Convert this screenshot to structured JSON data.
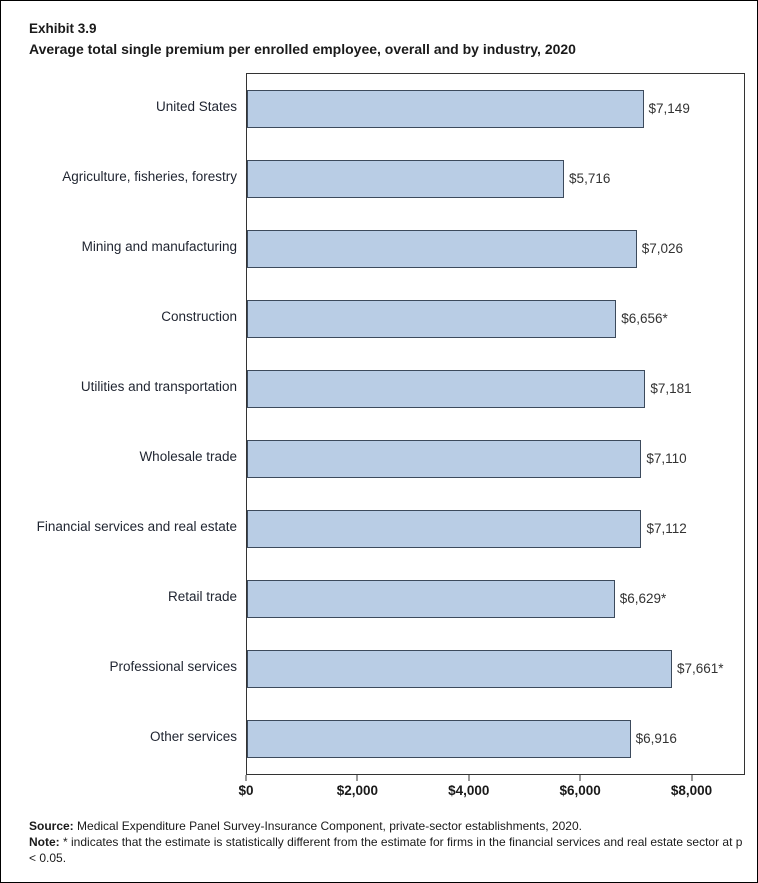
{
  "header": {
    "exhibit": "Exhibit 3.9",
    "title": "Average total single premium per enrolled employee, overall and by industry, 2020"
  },
  "chart_data": {
    "type": "bar",
    "orientation": "horizontal",
    "title": "Average total single premium per enrolled employee, overall and by industry, 2020",
    "categories": [
      "United States",
      "Agriculture, fisheries, forestry",
      "Mining and manufacturing",
      "Construction",
      "Utilities and transportation",
      "Wholesale trade",
      "Financial services and real estate",
      "Retail trade",
      "Professional services",
      "Other services"
    ],
    "values": [
      7149,
      5716,
      7026,
      6656,
      7181,
      7110,
      7112,
      6629,
      7661,
      6916
    ],
    "value_labels": [
      "$7,149",
      "$5,716",
      "$7,026",
      "$6,656*",
      "$7,181",
      "$7,110",
      "$7,112",
      "$6,629*",
      "$7,661*",
      "$6,916"
    ],
    "xlim": [
      0,
      8960
    ],
    "xticks": [
      0,
      2000,
      4000,
      6000,
      8000
    ],
    "xtick_labels": [
      "$0",
      "$2,000",
      "$4,000",
      "$6,000",
      "$8,000"
    ],
    "xlabel": "",
    "ylabel": "",
    "grid": false,
    "legend": false,
    "bar_color": "#b9cde5",
    "bar_border_color": "#3c4a5c"
  },
  "footer": {
    "source_label": "Source:",
    "source_text": " Medical Expenditure Panel Survey-Insurance Component, private-sector establishments, 2020.",
    "note_label": "Note:",
    "note_text": "  * indicates that the estimate is statistically different from the estimate for firms in the financial services and real estate sector at p < 0.05."
  }
}
